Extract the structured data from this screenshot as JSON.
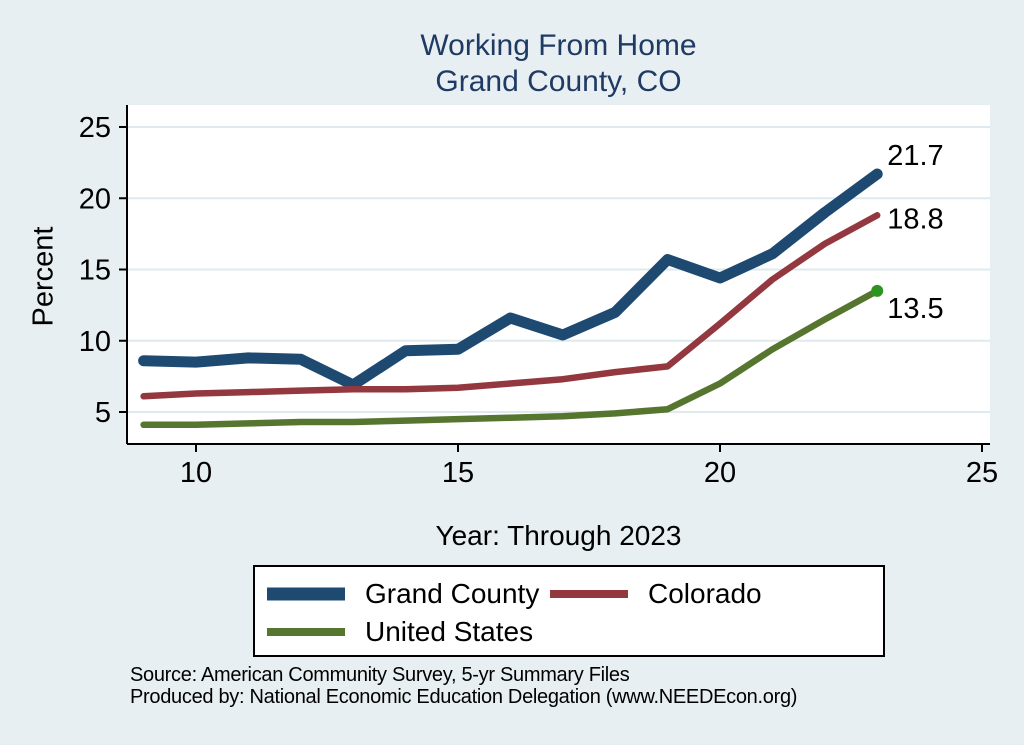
{
  "page": {
    "background_color": "#e7eff2",
    "plot_background_color": "#ffffff",
    "gridline_color": "#dfeaef",
    "title_color": "#1f3a63"
  },
  "chart_data": {
    "type": "line",
    "title": "Working From Home",
    "subtitle": "Grand County, CO",
    "ylabel": "Percent",
    "xlabel": "Year: Through 2023",
    "x": [
      9,
      10,
      11,
      12,
      13,
      14,
      15,
      16,
      17,
      18,
      19,
      20,
      21,
      22,
      23
    ],
    "series": [
      {
        "name": "Grand County",
        "color": "#1e4a72",
        "line_width": 11,
        "values": [
          8.6,
          8.5,
          8.8,
          8.7,
          6.9,
          9.3,
          9.4,
          11.6,
          10.4,
          12.0,
          15.7,
          14.4,
          16.1,
          19.0,
          21.7
        ],
        "end_label": "21.7",
        "end_marker": false
      },
      {
        "name": "Colorado",
        "color": "#94383f",
        "line_width": 6.5,
        "values": [
          6.1,
          6.3,
          6.4,
          6.5,
          6.6,
          6.6,
          6.7,
          7.0,
          7.3,
          7.8,
          8.2,
          11.2,
          14.3,
          16.8,
          18.8
        ],
        "end_label": "18.8",
        "end_marker": false
      },
      {
        "name": "United States",
        "color": "#567630",
        "line_width": 6.5,
        "values": [
          4.1,
          4.1,
          4.2,
          4.3,
          4.3,
          4.4,
          4.5,
          4.6,
          4.7,
          4.9,
          5.2,
          7.0,
          9.4,
          11.5,
          13.5
        ],
        "end_label": "13.5",
        "end_marker": true,
        "marker_color": "#2e9420"
      }
    ],
    "xticks": [
      10,
      15,
      20,
      25
    ],
    "yticks": [
      5,
      10,
      15,
      20,
      25
    ],
    "xlim": [
      8.7,
      25.2
    ],
    "ylim": [
      2.8,
      26.5
    ],
    "grid": true,
    "legend_position": "bottom"
  },
  "notes": {
    "source": "Source: American Community Survey, 5-yr Summary Files",
    "produced_by": "Produced by: National Economic Education Delegation (www.NEEDEcon.org)"
  }
}
